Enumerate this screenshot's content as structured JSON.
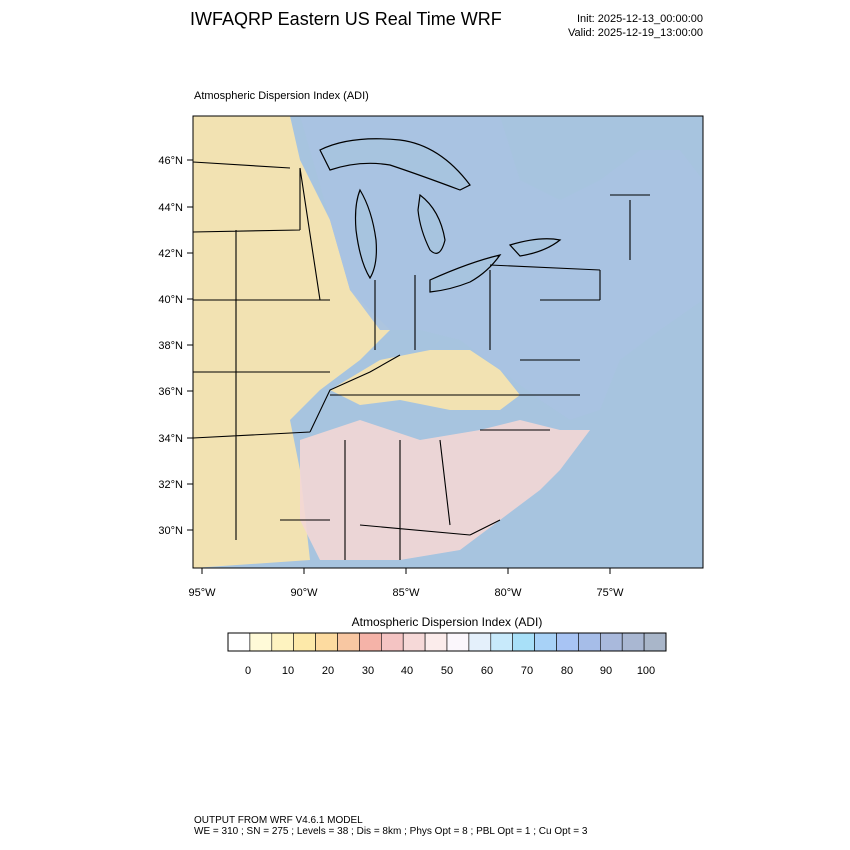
{
  "header": {
    "title": "IWFAQRP Eastern US Real Time WRF",
    "init": "Init: 2025-12-13_00:00:00",
    "valid": "Valid: 2025-12-19_13:00:00"
  },
  "map": {
    "panel_label": "Atmospheric Dispersion Index   (ADI)",
    "lat_labels": [
      "46°N",
      "44°N",
      "42°N",
      "40°N",
      "38°N",
      "36°N",
      "34°N",
      "32°N",
      "30°N"
    ],
    "lon_labels": [
      "95°W",
      "90°W",
      "85°W",
      "80°W",
      "75°W"
    ],
    "colors": {
      "ocean": "#a7c4df",
      "land_high": "#a9c3e2",
      "land_mid": "#f3d7d5",
      "land_low": "#fbe6ad",
      "outline": "#000000"
    }
  },
  "colorbar": {
    "title": "Atmospheric Dispersion Index  (ADI)",
    "tick_labels": [
      "0",
      "10",
      "20",
      "30",
      "40",
      "50",
      "60",
      "70",
      "80",
      "90",
      "100"
    ],
    "colors": [
      "#ffffff",
      "#fffad8",
      "#fef3c0",
      "#fde9a9",
      "#fddba0",
      "#f8c7a2",
      "#f5b3a8",
      "#f4c4c3",
      "#f6d9d8",
      "#fbeceb",
      "#fbf7fc",
      "#e4f0fb",
      "#c8eafb",
      "#a8e0f8",
      "#a8d2f7",
      "#a8c4f4",
      "#a6bde8",
      "#a9b9dc",
      "#a9b7d2",
      "#a9b6c9"
    ]
  },
  "footer": {
    "line1": "OUTPUT FROM WRF V4.6.1 MODEL",
    "line2": "WE = 310 ; SN = 275 ; Levels = 38 ; Dis = 8km ; Phys Opt = 8 ; PBL Opt = 1 ; Cu Opt = 3"
  }
}
